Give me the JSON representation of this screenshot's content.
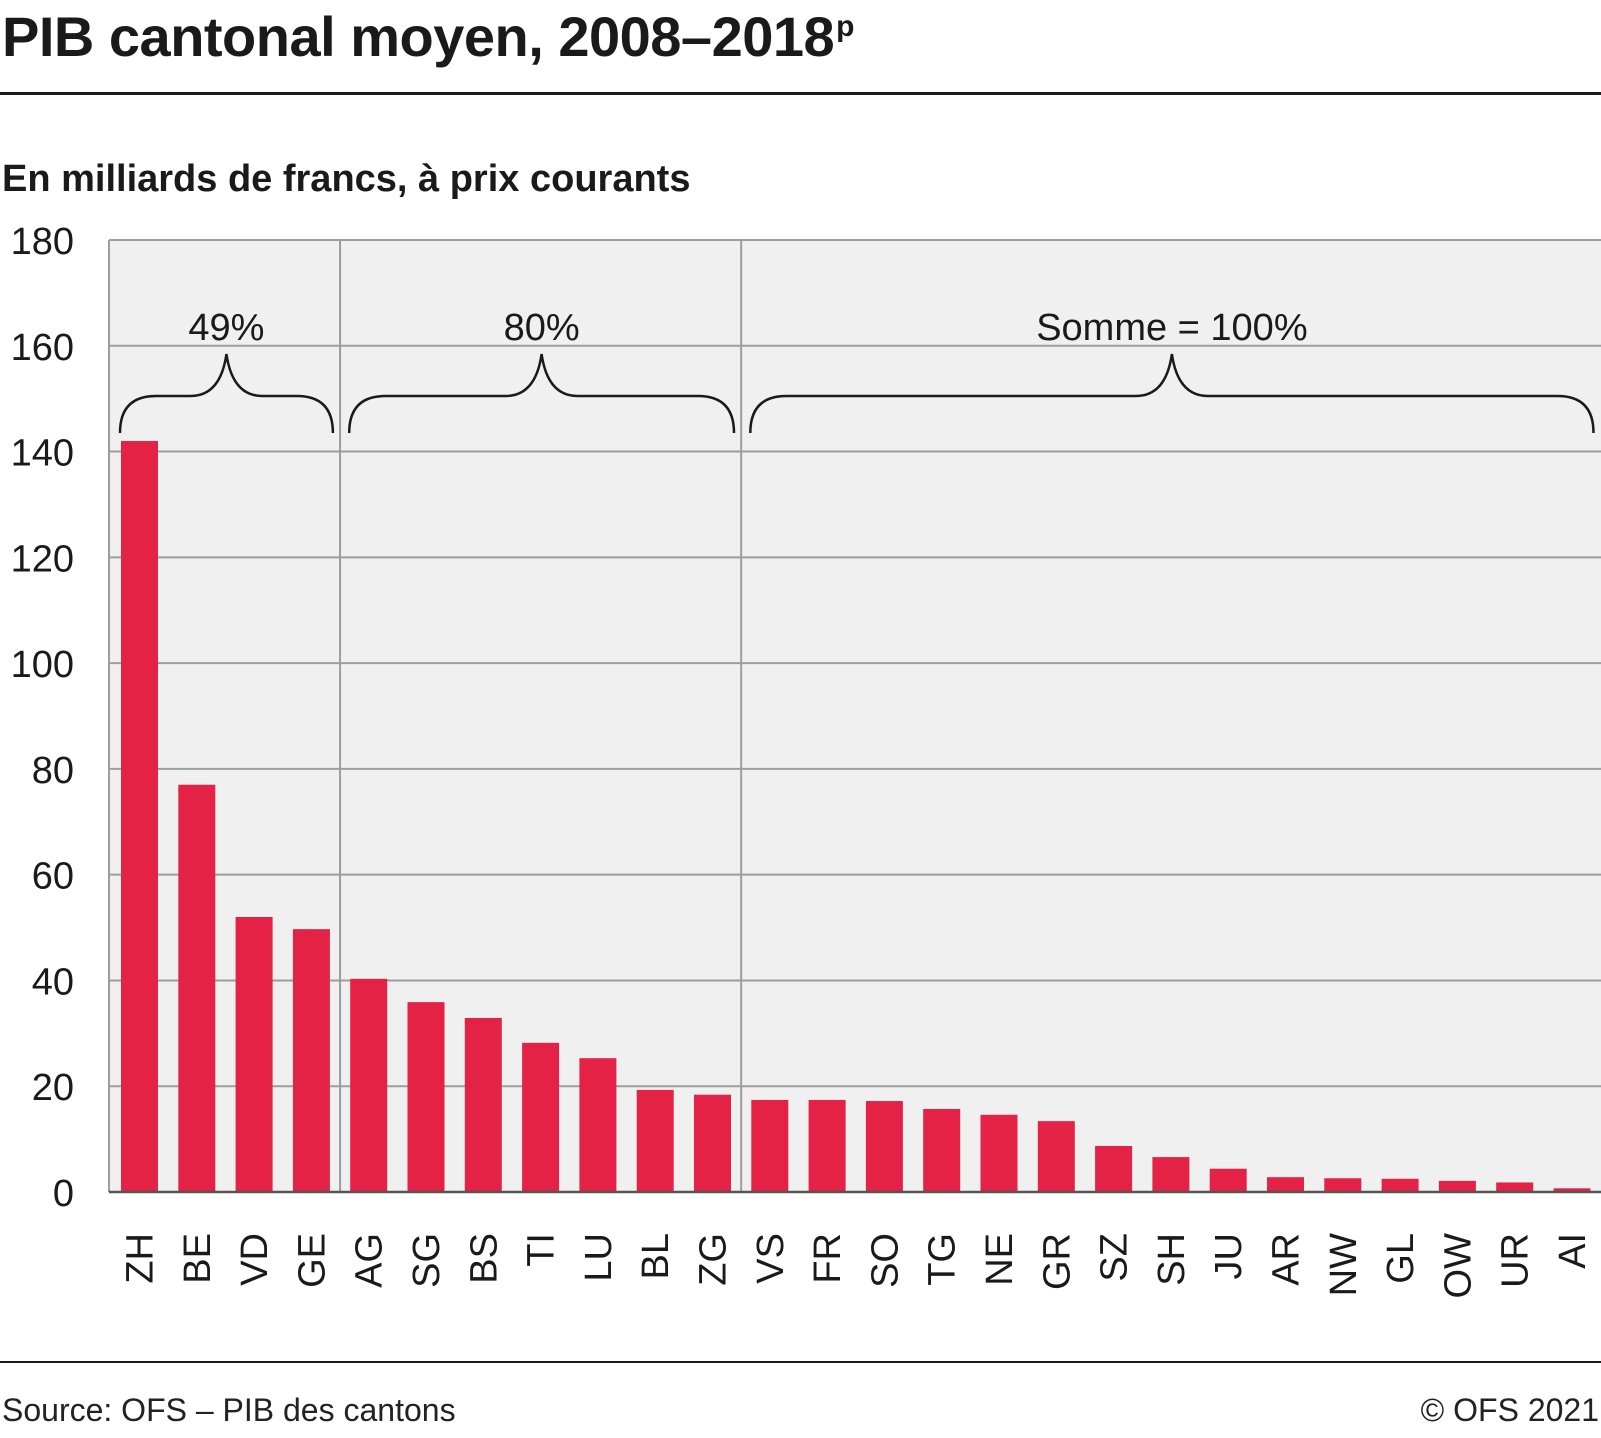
{
  "title": "PIB cantonal moyen, 2008–2018",
  "title_superscript": "p",
  "subtitle": "En milliards de francs, à prix courants",
  "source": "Source: OFS – PIB des cantons",
  "copyright": "© OFS 2021",
  "colors": {
    "bar": "#e32245",
    "plot_bg": "#f0f0f0",
    "grid": "#9d9d9d",
    "text": "#1a1a1a"
  },
  "chart_data": {
    "type": "bar",
    "categories": [
      "ZH",
      "BE",
      "VD",
      "GE",
      "AG",
      "SG",
      "BS",
      "TI",
      "LU",
      "BL",
      "ZG",
      "VS",
      "FR",
      "SO",
      "TG",
      "NE",
      "GR",
      "SZ",
      "SH",
      "JU",
      "AR",
      "NW",
      "GL",
      "OW",
      "UR",
      "AI"
    ],
    "values": [
      142.0,
      77.0,
      52.0,
      49.7,
      40.3,
      35.9,
      32.9,
      28.2,
      25.3,
      19.3,
      18.4,
      17.4,
      17.4,
      17.2,
      15.7,
      14.6,
      13.4,
      8.7,
      6.6,
      4.4,
      2.8,
      2.6,
      2.5,
      2.1,
      1.8,
      0.7
    ],
    "xlabel": "",
    "ylabel": "",
    "ylim": [
      0,
      180
    ],
    "yticks": [
      "0",
      "20",
      "40",
      "60",
      "80",
      "100",
      "120",
      "140",
      "160",
      "180"
    ],
    "grid": true,
    "annotations": [
      {
        "label": "49%",
        "from": "ZH",
        "to": "GE"
      },
      {
        "label": "80%",
        "from": "AG",
        "to": "ZG"
      },
      {
        "label": "Somme = 100%",
        "from": "VS",
        "to": "AI"
      }
    ]
  }
}
